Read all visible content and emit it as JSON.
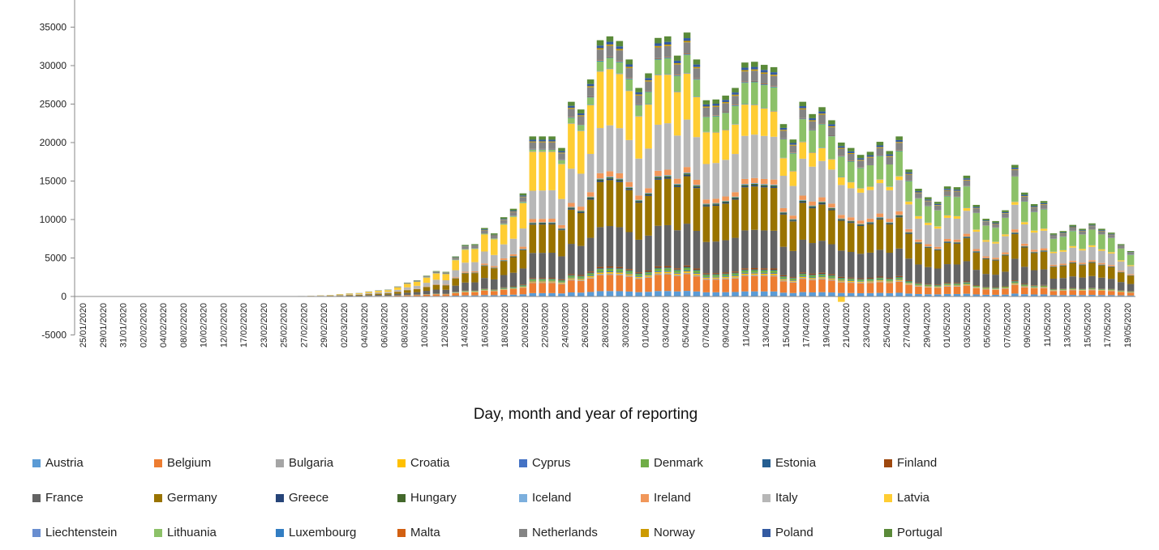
{
  "chart_data": {
    "type": "bar",
    "stacked": true,
    "title": "",
    "xlabel": "Day, month and year of reporting",
    "ylabel": "",
    "ylim": [
      -5000,
      35000
    ],
    "y_ticks": [
      -5000,
      0,
      5000,
      10000,
      15000,
      20000,
      25000,
      30000,
      35000
    ],
    "x_tick_labels": [
      "25/01/2020",
      "29/01/2020",
      "31/01/2020",
      "02/02/2020",
      "04/02/2020",
      "08/02/2020",
      "10/02/2020",
      "12/02/2020",
      "17/02/2020",
      "23/02/2020",
      "25/02/2020",
      "27/02/2020",
      "29/02/2020",
      "02/03/2020",
      "04/03/2020",
      "06/03/2020",
      "08/03/2020",
      "10/03/2020",
      "12/03/2020",
      "14/03/2020",
      "16/03/2020",
      "18/03/2020",
      "20/03/2020",
      "22/03/2020",
      "24/03/2020",
      "26/03/2020",
      "28/03/2020",
      "30/03/2020",
      "01/04/2020",
      "03/04/2020",
      "05/04/2020",
      "07/04/2020",
      "09/04/2020",
      "11/04/2020",
      "13/04/2020",
      "15/04/2020",
      "17/04/2020",
      "19/04/2020",
      "21/04/2020",
      "23/04/2020",
      "25/04/2020",
      "27/04/2020",
      "29/04/2020",
      "01/05/2020",
      "03/05/2020",
      "05/05/2020",
      "07/05/2020",
      "09/05/2020",
      "11/05/2020",
      "13/05/2020",
      "15/05/2020",
      "17/05/2020",
      "19/05/2020"
    ],
    "bar_totals": [
      2,
      3,
      2,
      3,
      2,
      4,
      3,
      2,
      3,
      4,
      3,
      2,
      3,
      5,
      6,
      4,
      5,
      4,
      6,
      8,
      10,
      15,
      30,
      60,
      90,
      150,
      200,
      300,
      400,
      450,
      650,
      800,
      900,
      1300,
      1800,
      2100,
      2700,
      3300,
      3200,
      5200,
      6700,
      6800,
      8900,
      8200,
      10300,
      11400,
      13400,
      20800,
      20800,
      20800,
      19300,
      25300,
      24300,
      28200,
      33300,
      33800,
      33200,
      30800,
      27100,
      29000,
      33600,
      33800,
      31300,
      34300,
      30800,
      25500,
      25600,
      26100,
      27100,
      30400,
      30500,
      30100,
      29800,
      22400,
      20400,
      25300,
      23700,
      24600,
      22900,
      20000,
      19300,
      18400,
      18800,
      20100,
      18900,
      20800,
      16500,
      14000,
      12900,
      12300,
      14300,
      14200,
      15700,
      11900,
      10100,
      9800,
      11200,
      17100,
      13500,
      12000,
      12400,
      8200,
      8500,
      9300,
      8800,
      9500,
      8800,
      8300,
      6800,
      5900
    ],
    "negative_values": {
      "index": 79,
      "value": -700
    },
    "series": [
      {
        "name": "Austria",
        "color": "#5B9BD5",
        "share": 0.02
      },
      {
        "name": "Belgium",
        "color": "#ED7D31",
        "share": 0.06
      },
      {
        "name": "Bulgaria",
        "color": "#A5A5A5",
        "share": 0.005
      },
      {
        "name": "Croatia",
        "color": "#FFC000",
        "share": 0.005
      },
      {
        "name": "Cyprus",
        "color": "#4472C4",
        "share": 0.003
      },
      {
        "name": "Denmark",
        "color": "#70AD47",
        "share": 0.01
      },
      {
        "name": "Estonia",
        "color": "#255E91",
        "share": 0.003
      },
      {
        "name": "Finland",
        "color": "#9E480E",
        "share": 0.005
      },
      {
        "name": "France",
        "color": "#636363",
        "share": 0.15
      },
      {
        "name": "Germany",
        "color": "#997300",
        "share": 0.17
      },
      {
        "name": "Greece",
        "color": "#264478",
        "share": 0.005
      },
      {
        "name": "Hungary",
        "color": "#43682B",
        "share": 0.005
      },
      {
        "name": "Iceland",
        "color": "#7CAFDD",
        "share": 0.003
      },
      {
        "name": "Ireland",
        "color": "#F1975A",
        "share": 0.02
      },
      {
        "name": "Italy",
        "color": "#B7B7B7",
        "share": 0.17
      },
      {
        "name": "Latvia",
        "color": "#FFCD33",
        "share": 0.003
      },
      {
        "name": "Liechtenstein",
        "color": "#698ED0",
        "share": 0.002
      },
      {
        "name": "Lithuania",
        "color": "#8CC168",
        "share": 0.003
      },
      {
        "name": "Luxembourg",
        "color": "#327DC2",
        "share": 0.003
      },
      {
        "name": "Malta",
        "color": "#D26012",
        "share": 0.002
      },
      {
        "name": "Netherlands",
        "color": "#848484",
        "share": 0.04
      },
      {
        "name": "Norway",
        "color": "#CC9A00",
        "share": 0.005
      },
      {
        "name": "Poland",
        "color": "#335AA1",
        "share": 0.01
      },
      {
        "name": "Portugal",
        "color": "#5A8A39",
        "share": 0.02
      }
    ],
    "legend_rows": [
      [
        "Austria",
        "Belgium",
        "Bulgaria",
        "Croatia",
        "Cyprus",
        "Denmark",
        "Estonia",
        "Finland"
      ],
      [
        "France",
        "Germany",
        "Greece",
        "Hungary",
        "Iceland",
        "Ireland",
        "Italy",
        "Latvia"
      ],
      [
        "Liechtenstein",
        "Lithuania",
        "Luxembourg",
        "Malta",
        "Netherlands",
        "Norway",
        "Poland",
        "Portugal"
      ]
    ],
    "legend_colors": {
      "Austria": "#5B9BD5",
      "Belgium": "#ED7D31",
      "Bulgaria": "#A5A5A5",
      "Croatia": "#FFC000",
      "Cyprus": "#4472C4",
      "Denmark": "#70AD47",
      "Estonia": "#255E91",
      "Finland": "#9E480E",
      "France": "#636363",
      "Germany": "#997300",
      "Greece": "#264478",
      "Hungary": "#43682B",
      "Iceland": "#7CAFDD",
      "Ireland": "#F1975A",
      "Italy": "#B7B7B7",
      "Latvia": "#FFCD33",
      "Liechtenstein": "#698ED0",
      "Lithuania": "#8CC168",
      "Luxembourg": "#327DC2",
      "Malta": "#D26012",
      "Netherlands": "#848484",
      "Norway": "#CC9A00",
      "Poland": "#335AA1",
      "Portugal": "#5A8A39"
    },
    "grid": false,
    "legend_position": "bottom"
  }
}
